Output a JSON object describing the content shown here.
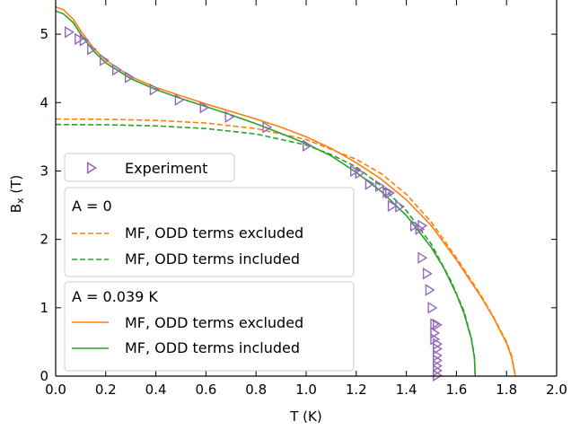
{
  "chart_data": {
    "type": "line",
    "xlabel": "T (K)",
    "ylabel": "B_x (T)",
    "xlim": [
      0.0,
      2.0
    ],
    "ylim": [
      0,
      5.5
    ],
    "xticks": [
      "0.0",
      "0.2",
      "0.4",
      "0.6",
      "0.8",
      "1.0",
      "1.2",
      "1.4",
      "1.6",
      "1.8",
      "2.0"
    ],
    "yticks": [
      "0",
      "1",
      "2",
      "3",
      "4",
      "5"
    ],
    "colors": {
      "orange": "#ff7f0e",
      "green": "#2ca02c",
      "purple": "#9467bd"
    },
    "experiment": {
      "name": "Experiment",
      "marker": "right-triangle",
      "points": [
        [
          0.05,
          5.03
        ],
        [
          0.09,
          4.93
        ],
        [
          0.11,
          4.91
        ],
        [
          0.14,
          4.78
        ],
        [
          0.19,
          4.62
        ],
        [
          0.24,
          4.48
        ],
        [
          0.29,
          4.37
        ],
        [
          0.39,
          4.19
        ],
        [
          0.49,
          4.04
        ],
        [
          0.59,
          3.93
        ],
        [
          0.69,
          3.79
        ],
        [
          0.84,
          3.64
        ],
        [
          1.0,
          3.37
        ],
        [
          1.19,
          3.0
        ],
        [
          1.21,
          2.97
        ],
        [
          1.25,
          2.81
        ],
        [
          1.29,
          2.78
        ],
        [
          1.32,
          2.69
        ],
        [
          1.33,
          2.68
        ],
        [
          1.34,
          2.49
        ],
        [
          1.37,
          2.48
        ],
        [
          1.43,
          2.2
        ],
        [
          1.45,
          2.15
        ],
        [
          1.46,
          2.2
        ],
        [
          1.46,
          1.73
        ],
        [
          1.48,
          1.5
        ],
        [
          1.49,
          1.26
        ],
        [
          1.5,
          1.0
        ],
        [
          1.51,
          0.76
        ],
        [
          1.52,
          0.75
        ],
        [
          1.51,
          0.63
        ],
        [
          1.51,
          0.54
        ],
        [
          1.52,
          0.47
        ],
        [
          1.52,
          0.4
        ],
        [
          1.52,
          0.3
        ],
        [
          1.52,
          0.23
        ],
        [
          1.52,
          0.15
        ],
        [
          1.52,
          0.08
        ],
        [
          1.52,
          0.01
        ]
      ]
    },
    "groups": [
      {
        "title": "A = 0",
        "series": [
          {
            "name": "MF, ODD terms excluded",
            "style": "dashed",
            "color": "orange",
            "points": [
              [
                0.0,
                3.76
              ],
              [
                0.2,
                3.755
              ],
              [
                0.4,
                3.74
              ],
              [
                0.6,
                3.7
              ],
              [
                0.8,
                3.62
              ],
              [
                1.0,
                3.46
              ],
              [
                1.2,
                3.17
              ],
              [
                1.3,
                2.96
              ],
              [
                1.4,
                2.66
              ],
              [
                1.5,
                2.25
              ],
              [
                1.6,
                1.73
              ],
              [
                1.7,
                1.17
              ],
              [
                1.75,
                0.85
              ],
              [
                1.8,
                0.5
              ],
              [
                1.82,
                0.3
              ],
              [
                1.835,
                0.0
              ]
            ]
          },
          {
            "name": "MF, ODD terms included",
            "style": "dashed",
            "color": "green",
            "points": [
              [
                0.0,
                3.68
              ],
              [
                0.2,
                3.675
              ],
              [
                0.4,
                3.66
              ],
              [
                0.6,
                3.62
              ],
              [
                0.8,
                3.54
              ],
              [
                1.0,
                3.38
              ],
              [
                1.1,
                3.24
              ],
              [
                1.2,
                3.06
              ],
              [
                1.3,
                2.78
              ],
              [
                1.4,
                2.42
              ],
              [
                1.5,
                1.93
              ],
              [
                1.58,
                1.38
              ],
              [
                1.63,
                0.95
              ],
              [
                1.66,
                0.55
              ],
              [
                1.672,
                0.28
              ],
              [
                1.675,
                0.0
              ]
            ]
          }
        ]
      },
      {
        "title": "A = 0.039 K",
        "series": [
          {
            "name": "MF, ODD terms excluded",
            "style": "solid",
            "color": "orange",
            "points": [
              [
                0.0,
                5.4
              ],
              [
                0.03,
                5.36
              ],
              [
                0.07,
                5.22
              ],
              [
                0.1,
                5.05
              ],
              [
                0.15,
                4.8
              ],
              [
                0.2,
                4.62
              ],
              [
                0.3,
                4.38
              ],
              [
                0.4,
                4.22
              ],
              [
                0.5,
                4.1
              ],
              [
                0.6,
                3.98
              ],
              [
                0.7,
                3.87
              ],
              [
                0.8,
                3.76
              ],
              [
                0.9,
                3.64
              ],
              [
                1.0,
                3.5
              ],
              [
                1.1,
                3.33
              ],
              [
                1.2,
                3.12
              ],
              [
                1.3,
                2.88
              ],
              [
                1.4,
                2.58
              ],
              [
                1.5,
                2.2
              ],
              [
                1.6,
                1.7
              ],
              [
                1.7,
                1.15
              ],
              [
                1.75,
                0.84
              ],
              [
                1.8,
                0.48
              ],
              [
                1.82,
                0.28
              ],
              [
                1.835,
                0.0
              ]
            ]
          },
          {
            "name": "MF, ODD terms included",
            "style": "solid",
            "color": "green",
            "points": [
              [
                0.0,
                5.34
              ],
              [
                0.03,
                5.3
              ],
              [
                0.07,
                5.17
              ],
              [
                0.1,
                5.0
              ],
              [
                0.15,
                4.76
              ],
              [
                0.2,
                4.58
              ],
              [
                0.3,
                4.35
              ],
              [
                0.4,
                4.19
              ],
              [
                0.5,
                4.06
              ],
              [
                0.6,
                3.94
              ],
              [
                0.7,
                3.82
              ],
              [
                0.8,
                3.69
              ],
              [
                0.9,
                3.55
              ],
              [
                1.0,
                3.4
              ],
              [
                1.1,
                3.22
              ],
              [
                1.2,
                2.98
              ],
              [
                1.3,
                2.7
              ],
              [
                1.4,
                2.35
              ],
              [
                1.5,
                1.88
              ],
              [
                1.55,
                1.58
              ],
              [
                1.6,
                1.2
              ],
              [
                1.63,
                0.92
              ],
              [
                1.66,
                0.54
              ],
              [
                1.672,
                0.26
              ],
              [
                1.675,
                0.0
              ]
            ]
          }
        ]
      }
    ]
  }
}
